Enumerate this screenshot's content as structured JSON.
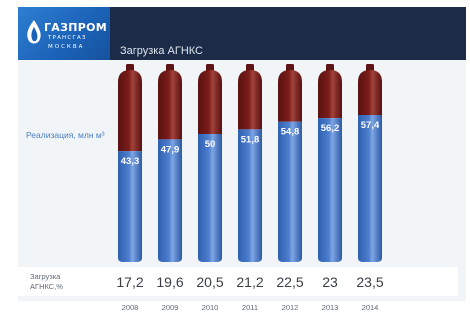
{
  "header": {
    "logo_brand": "ГАЗПРОМ",
    "logo_sub1": "ТРАНСГАЗ",
    "logo_sub2": "МОСКВА",
    "title": "Загрузка АГНКС"
  },
  "colors": {
    "cylinder_top": "#7a1c1a",
    "cylinder_blue": "#4d7fcf",
    "header_bg": "#1c2b48",
    "logo_bg": "#1b62b7"
  },
  "chart_data": {
    "type": "bar",
    "ylabel": "Реализация, млн м³",
    "categories": [
      "2008",
      "2009",
      "2010",
      "2011",
      "2012",
      "2013",
      "2014"
    ],
    "series": [
      {
        "values": [
          43.3,
          47.9,
          50,
          51.8,
          54.8,
          56.2,
          57.4
        ]
      }
    ],
    "value_labels": [
      "43,3",
      "47,9",
      "50",
      "51,8",
      "54,8",
      "56,2",
      "57,4"
    ],
    "ylim": [
      0,
      75
    ]
  },
  "load_row": {
    "label": "Загрузка АГНКС,%",
    "values": [
      "17,2",
      "19,6",
      "20,5",
      "21,2",
      "22,5",
      "23",
      "23,5"
    ]
  }
}
